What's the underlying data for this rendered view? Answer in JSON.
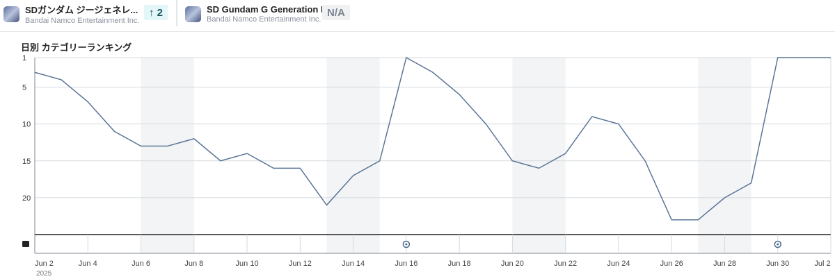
{
  "apps": [
    {
      "name": "SDガンダム ジージェネレ...",
      "publisher": "Bandai Namco Entertainment Inc.",
      "badge": "↑ 2"
    },
    {
      "name": "SD Gundam G Generation E...",
      "publisher": "Bandai Namco Entertainment Inc.",
      "badge": "N/A"
    }
  ],
  "chart_data": {
    "type": "line",
    "title": "日別 カテゴリーランキング",
    "x": [
      "Jun 2",
      "Jun 3",
      "Jun 4",
      "Jun 5",
      "Jun 6",
      "Jun 7",
      "Jun 8",
      "Jun 9",
      "Jun 10",
      "Jun 11",
      "Jun 12",
      "Jun 13",
      "Jun 14",
      "Jun 15",
      "Jun 16",
      "Jun 17",
      "Jun 18",
      "Jun 19",
      "Jun 20",
      "Jun 21",
      "Jun 22",
      "Jun 23",
      "Jun 24",
      "Jun 25",
      "Jun 26",
      "Jun 27",
      "Jun 28",
      "Jun 29",
      "Jun 30",
      "Jul 1",
      "Jul 2"
    ],
    "series": [
      {
        "name": "SDガンダム ジージェネレ...",
        "color": "#5a7596",
        "values": [
          3,
          4,
          7,
          11,
          13,
          13,
          12,
          15,
          14,
          16,
          16,
          21,
          17,
          15,
          1,
          3,
          6,
          10,
          15,
          16,
          14,
          9,
          10,
          15,
          23,
          23,
          20,
          18,
          1,
          1,
          1
        ]
      }
    ],
    "yticks": [
      1,
      5,
      10,
      15,
      20
    ],
    "ylim": [
      1,
      25
    ],
    "y_reversed": true,
    "xtick_labels": [
      "Jun 2",
      "Jun 4",
      "Jun 6",
      "Jun 8",
      "Jun 10",
      "Jun 12",
      "Jun 14",
      "Jun 16",
      "Jun 18",
      "Jun 20",
      "Jun 22",
      "Jun 24",
      "Jun 26",
      "Jun 28",
      "Jun 30",
      "Jul 2"
    ],
    "year_label": "2025",
    "weekend_shading": [
      [
        "Jun 6",
        "Jun 8"
      ],
      [
        "Jun 13",
        "Jun 15"
      ],
      [
        "Jun 20",
        "Jun 22"
      ],
      [
        "Jun 27",
        "Jun 29"
      ]
    ],
    "annotations": [
      "Jun 16",
      "Jun 30"
    ]
  }
}
